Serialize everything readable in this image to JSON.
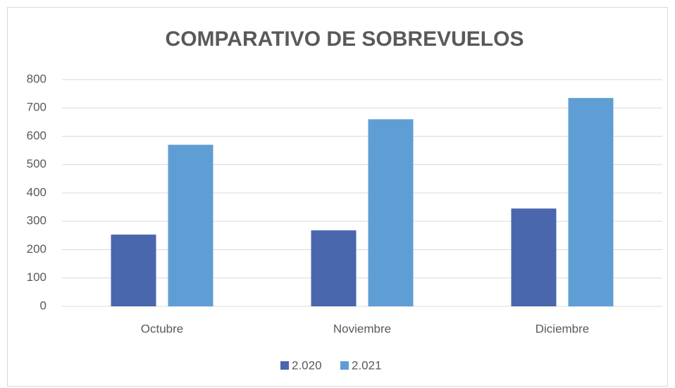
{
  "chart_data": {
    "type": "bar",
    "title": "COMPARATIVO DE SOBREVUELOS",
    "categories": [
      "Octubre",
      "Noviembre",
      "Diciembre"
    ],
    "series": [
      {
        "name": "2.020",
        "color": "#4a66ad",
        "values": [
          253,
          268,
          345
        ]
      },
      {
        "name": "2.021",
        "color": "#5f9ed4",
        "values": [
          570,
          660,
          735
        ]
      }
    ],
    "ylim": [
      0,
      800
    ],
    "yticks": [
      0,
      100,
      200,
      300,
      400,
      500,
      600,
      700,
      800
    ],
    "grid": true,
    "legend": "bottom"
  }
}
